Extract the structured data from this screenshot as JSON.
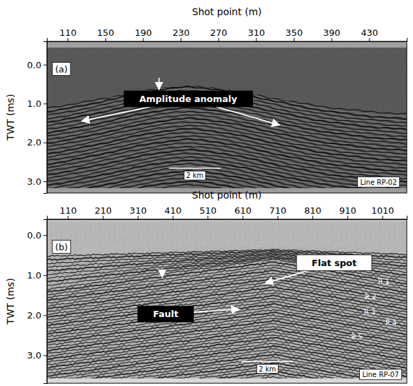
{
  "chart_data": [
    {
      "type": "seismic",
      "title": "(a)",
      "x_label": "Shot point (m)",
      "y_label": "TWT (ms)",
      "color": "#5a5a5a",
      "xlim": [
        88,
        470
      ],
      "ylim": [
        -0.6,
        3.3
      ],
      "xticks": [
        110,
        150,
        190,
        230,
        270,
        310,
        350,
        390,
        430
      ],
      "yticks": [
        {
          "value": 0,
          "label": "0.0"
        },
        {
          "value": 1,
          "label": "1.0"
        },
        {
          "value": 2,
          "label": "2.0"
        },
        {
          "value": 3,
          "label": "3.0"
        }
      ],
      "annotations": [
        {
          "text": "Amplitude anomaly",
          "x": 238,
          "y": 0.88,
          "color": "#000000",
          "arrow_to": [
            [
              125,
              1.45
            ],
            [
              335,
              1.55
            ]
          ]
        }
      ],
      "down_arrows": [
        {
          "x": 207,
          "y1": 0.34,
          "y2": 0.64
        }
      ],
      "scale_bar": {
        "text": "2 km",
        "x": 245,
        "y": 2.85
      },
      "line_name": {
        "text": "Line RP-02",
        "x": 440,
        "y": 3.02
      }
    },
    {
      "type": "seismic",
      "title": "(b)",
      "x_label": "Shot point (m)",
      "y_label": "TWT (ms)",
      "color": "#bdbdbd",
      "xlim": [
        50,
        1080
      ],
      "ylim": [
        -0.4,
        3.7
      ],
      "xticks": [
        110,
        210,
        310,
        410,
        510,
        610,
        710,
        810,
        910,
        1010
      ],
      "yticks": [
        {
          "value": 0,
          "label": "0.0"
        },
        {
          "value": 1,
          "label": "1.0"
        },
        {
          "value": 2,
          "label": "2.0"
        },
        {
          "value": 3,
          "label": "3.0"
        }
      ],
      "annotations": [
        {
          "text": "Flat spot",
          "x": 872,
          "y": 0.69,
          "color": "#ffffff",
          "arrow_to": [
            [
              675,
              1.2
            ]
          ]
        },
        {
          "text": "Fault",
          "x": 390,
          "y": 1.97,
          "color": "#000000",
          "arrow_to": [
            [
              600,
              1.85
            ]
          ]
        },
        {
          "text": "R 1",
          "x": 1014,
          "y": 1.16
        },
        {
          "text": "R 2",
          "x": 976,
          "y": 1.53
        },
        {
          "text": "R 3",
          "x": 974,
          "y": 1.91
        },
        {
          "text": "R 4",
          "x": 1035,
          "y": 2.19
        },
        {
          "text": "R 5",
          "x": 937,
          "y": 2.53
        }
      ],
      "down_arrows": [
        {
          "x": 380,
          "y1": 0.85,
          "y2": 1.05
        }
      ],
      "scale_bar": {
        "text": "2 km",
        "x": 681,
        "y": 3.34
      },
      "line_name": {
        "text": "Line RP-07",
        "x": 1005,
        "y": 3.48
      }
    }
  ]
}
